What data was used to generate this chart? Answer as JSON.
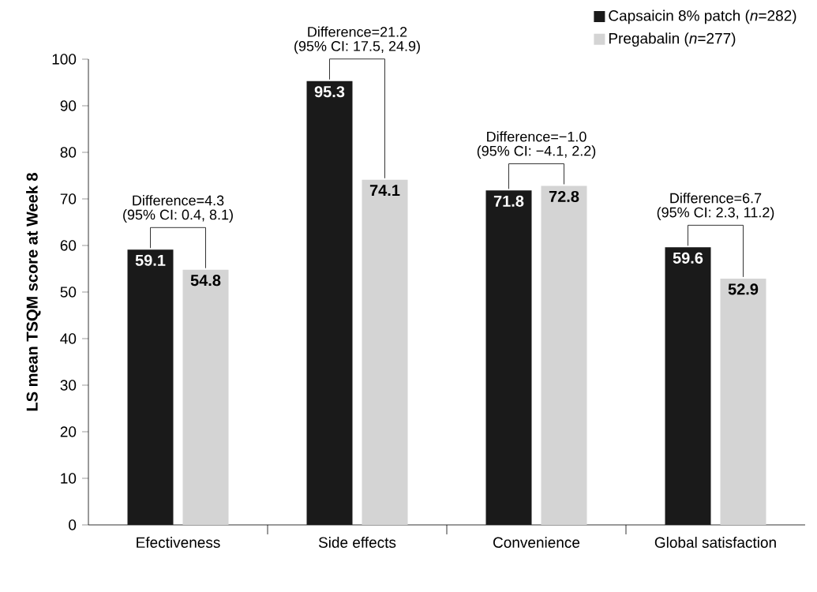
{
  "chart_data": {
    "type": "bar",
    "ylabel": "LS mean TSQM score at Week 8",
    "categories": [
      "Efectiveness",
      "Side effects",
      "Convenience",
      "Global satisfaction"
    ],
    "series": [
      {
        "name": "Capsaicin 8% patch (*n*=282)",
        "color": "#1a1a1a",
        "values": [
          59.1,
          95.3,
          71.8,
          59.6
        ]
      },
      {
        "name": "Pregabalin (*n*=277)",
        "color": "#d4d4d4",
        "values": [
          54.8,
          74.1,
          72.8,
          52.9
        ]
      }
    ],
    "ylim": [
      0,
      100
    ],
    "yticks": [
      0,
      10,
      20,
      30,
      40,
      50,
      60,
      70,
      80,
      90,
      100
    ],
    "data_labels": true,
    "legend": "top right",
    "grid": false,
    "annotations": [
      "Difference=4.3",
      "(95% CI: 0.4, 8.1)",
      "Difference=21.2",
      "(95% CI: 17.5, 24.9)",
      "Difference=−1.0",
      "(95% CI: −4.1, 2.2)",
      "Difference=6.7",
      "(95% CI: 2.3, 11.2)"
    ]
  }
}
